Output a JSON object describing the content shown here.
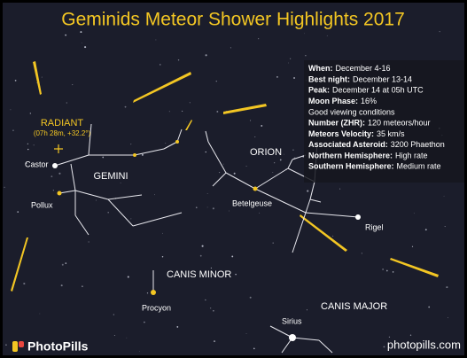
{
  "header": {
    "title": "Geminids Meteor Shower Highlights 2017"
  },
  "radiant": {
    "label": "RADIANT",
    "coords": "(07h 28m, +32.2°)"
  },
  "constellations": [
    {
      "name": "GEMINI",
      "stars": [
        "Castor",
        "Pollux"
      ]
    },
    {
      "name": "ORION",
      "stars": [
        "Betelgeuse",
        "Rigel"
      ]
    },
    {
      "name": "CANIS MINOR",
      "stars": [
        "Procyon"
      ]
    },
    {
      "name": "CANIS MAJOR",
      "stars": [
        "Sirius"
      ]
    }
  ],
  "info": [
    {
      "key": "When:",
      "value": "December 4-16"
    },
    {
      "key": "Best night:",
      "value": "December 13-14"
    },
    {
      "key": "Peak:",
      "value": "December 14 at 05h UTC"
    },
    {
      "key": "Moon Phase:",
      "value": "16%"
    },
    {
      "text": "Good viewing conditions"
    },
    {
      "key": "Number (ZHR):",
      "value": "120 meteors/hour"
    },
    {
      "key": "Meteors Velocity:",
      "value": "35 km/s"
    },
    {
      "key": "Associated Asteroid:",
      "value": "3200 Phaethon"
    },
    {
      "key": "Northern Hemisphere:",
      "value": "High rate"
    },
    {
      "key": "Southern Hemisphere:",
      "value": "Medium rate"
    }
  ],
  "footer": {
    "brand": "PhotoPills",
    "url": "photopills.com"
  }
}
